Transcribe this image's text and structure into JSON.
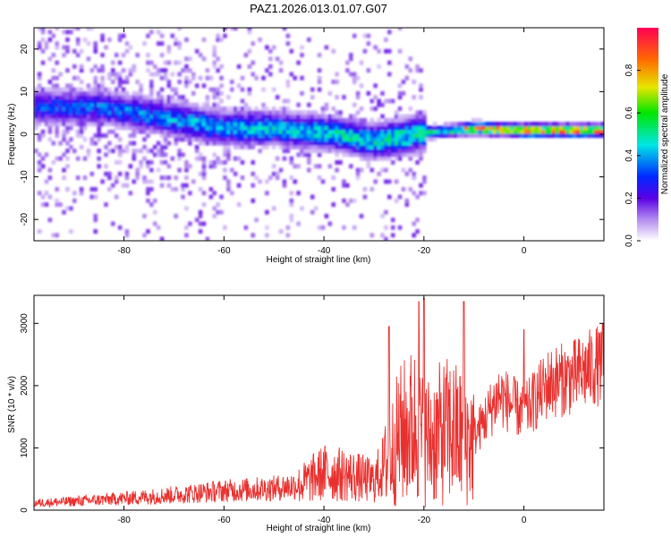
{
  "figure": {
    "title": "PAZ1.2026.013.01.07.G07"
  },
  "colors": {
    "frame": "#000000",
    "snr_line": "#e8312f",
    "background": "#ffffff"
  },
  "chart_data": [
    {
      "type": "heatmap",
      "title": "PAZ1.2026.013.01.07.G07",
      "xlabel": "Height of straight line (km)",
      "ylabel": "Frequency (Hz)",
      "xlim": [
        -98,
        16
      ],
      "ylim": [
        -25,
        25
      ],
      "xticks": [
        -80,
        -60,
        -40,
        -20,
        0
      ],
      "yticks": [
        -20,
        -10,
        0,
        10,
        20
      ],
      "colorbar": {
        "label": "Normalized spectral amplitude",
        "range": [
          0.0,
          1.0
        ],
        "ticks": [
          0.0,
          0.2,
          0.4,
          0.6,
          0.8
        ]
      },
      "ridge": {
        "description_points_x": [
          -98,
          -85,
          -70,
          -60,
          -50,
          -40,
          -30,
          -20,
          -10,
          0,
          16
        ],
        "description_points_freq": [
          6,
          6,
          3,
          1,
          1,
          0,
          -2,
          0,
          1,
          0.5,
          0.5
        ],
        "peak_amplitude_points_x": [
          -10,
          0,
          16
        ],
        "peak_amplitude": [
          0.85,
          0.95,
          0.9
        ]
      }
    },
    {
      "type": "line",
      "xlabel": "Height of straight line (km)",
      "ylabel": "SNR (10 * v/v)",
      "xlim": [
        -98,
        16
      ],
      "ylim": [
        0,
        3450
      ],
      "xticks": [
        -80,
        -60,
        -40,
        -20,
        0
      ],
      "yticks": [
        0,
        1000,
        2000,
        3000
      ],
      "series": [
        {
          "name": "SNR",
          "envelope_x": [
            -98,
            -90,
            -80,
            -70,
            -60,
            -50,
            -45,
            -40,
            -35,
            -30,
            -27,
            -25,
            -22,
            -20,
            -15,
            -10,
            -5,
            0,
            5,
            10,
            16
          ],
          "envelope_mean": [
            120,
            150,
            200,
            260,
            330,
            370,
            430,
            650,
            600,
            500,
            900,
            1300,
            1500,
            1200,
            1400,
            1200,
            1900,
            1600,
            2100,
            2200,
            2450
          ],
          "spike_x": [
            -27,
            -21,
            -20,
            -12,
            0,
            15
          ],
          "spike_values": [
            2950,
            3350,
            3400,
            3350,
            2900,
            2850
          ]
        }
      ]
    }
  ]
}
